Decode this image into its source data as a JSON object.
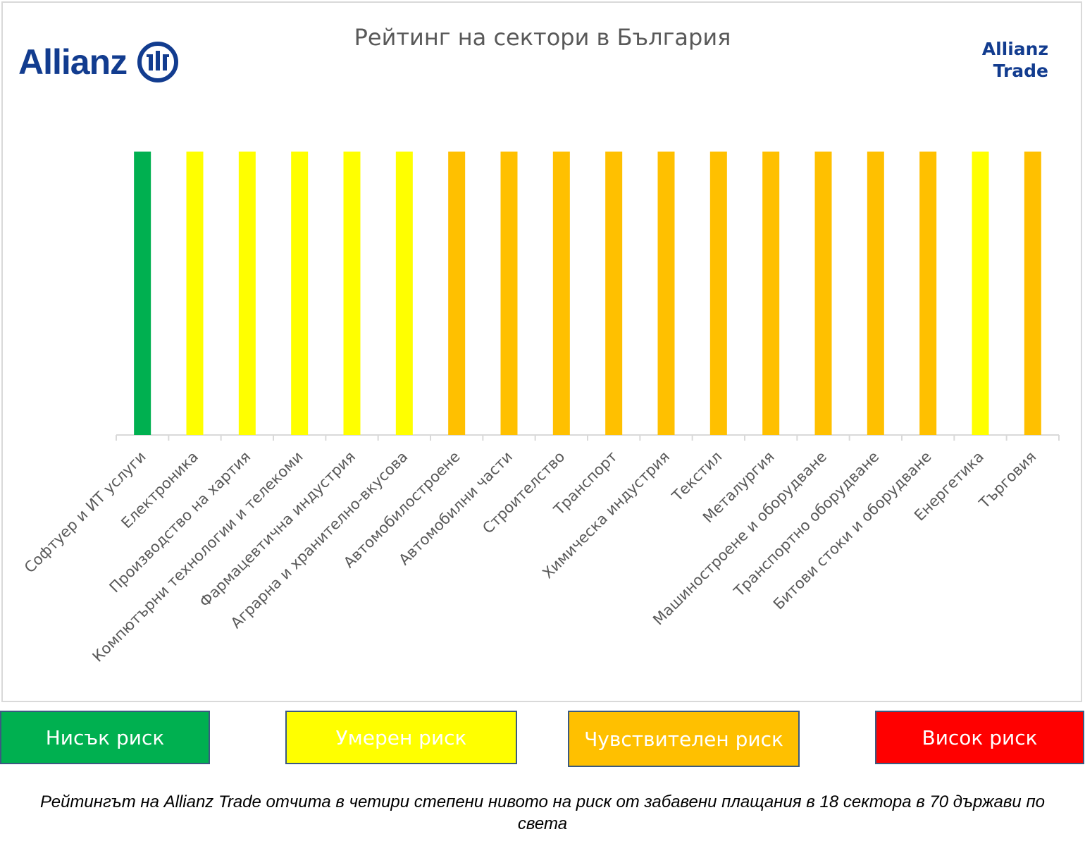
{
  "brand": {
    "logo_text": "Allianz",
    "logo_icon": "allianz-eagle-icon",
    "trade_line1": "Allianz",
    "trade_line2": "Trade"
  },
  "colors": {
    "low": "#00b050",
    "moderate": "#ffff00",
    "sensitive": "#ffc000",
    "high": "#ff0000",
    "brand_blue": "#123c8f",
    "axis": "#d9d9d9",
    "label": "#595959"
  },
  "chart_data": {
    "type": "bar",
    "title": "Рейтинг на сектори  в България",
    "categories": [
      "Софтуер и ИТ услуги",
      "Електроника",
      "Производство на хартия",
      "Компютърни технологии и телекоми",
      "Фармацевтична индустрия",
      "Аграрна и хранително-вкусова",
      "Автомобилостроене",
      "Автомобилни части",
      "Строителство",
      "Транспорт",
      "Химическа индустрия",
      "Текстил",
      "Металургия",
      "Машиностроене и оборудване",
      "Транспортно оборудване",
      "Битови стоки и оборудване",
      "Енергетика",
      "Търговия"
    ],
    "values": [
      1,
      1,
      1,
      1,
      1,
      1,
      1,
      1,
      1,
      1,
      1,
      1,
      1,
      1,
      1,
      1,
      1,
      1
    ],
    "risk": [
      "low",
      "moderate",
      "moderate",
      "moderate",
      "moderate",
      "moderate",
      "sensitive",
      "sensitive",
      "sensitive",
      "sensitive",
      "sensitive",
      "sensitive",
      "sensitive",
      "sensitive",
      "sensitive",
      "sensitive",
      "moderate",
      "sensitive"
    ],
    "ylim": [
      0,
      1
    ],
    "grid": false,
    "legend": "bottom"
  },
  "legend": [
    {
      "key": "low",
      "label": "Нисък риск"
    },
    {
      "key": "moderate",
      "label": "Умерен риск"
    },
    {
      "key": "sensitive",
      "label": "Чувствителен риск"
    },
    {
      "key": "high",
      "label": "Висок риск"
    }
  ],
  "caption": "Рейтингът на Allianz Trade отчита в четири степени нивото на риск от забавени плащания в 18 сектора в 70 държави по света"
}
